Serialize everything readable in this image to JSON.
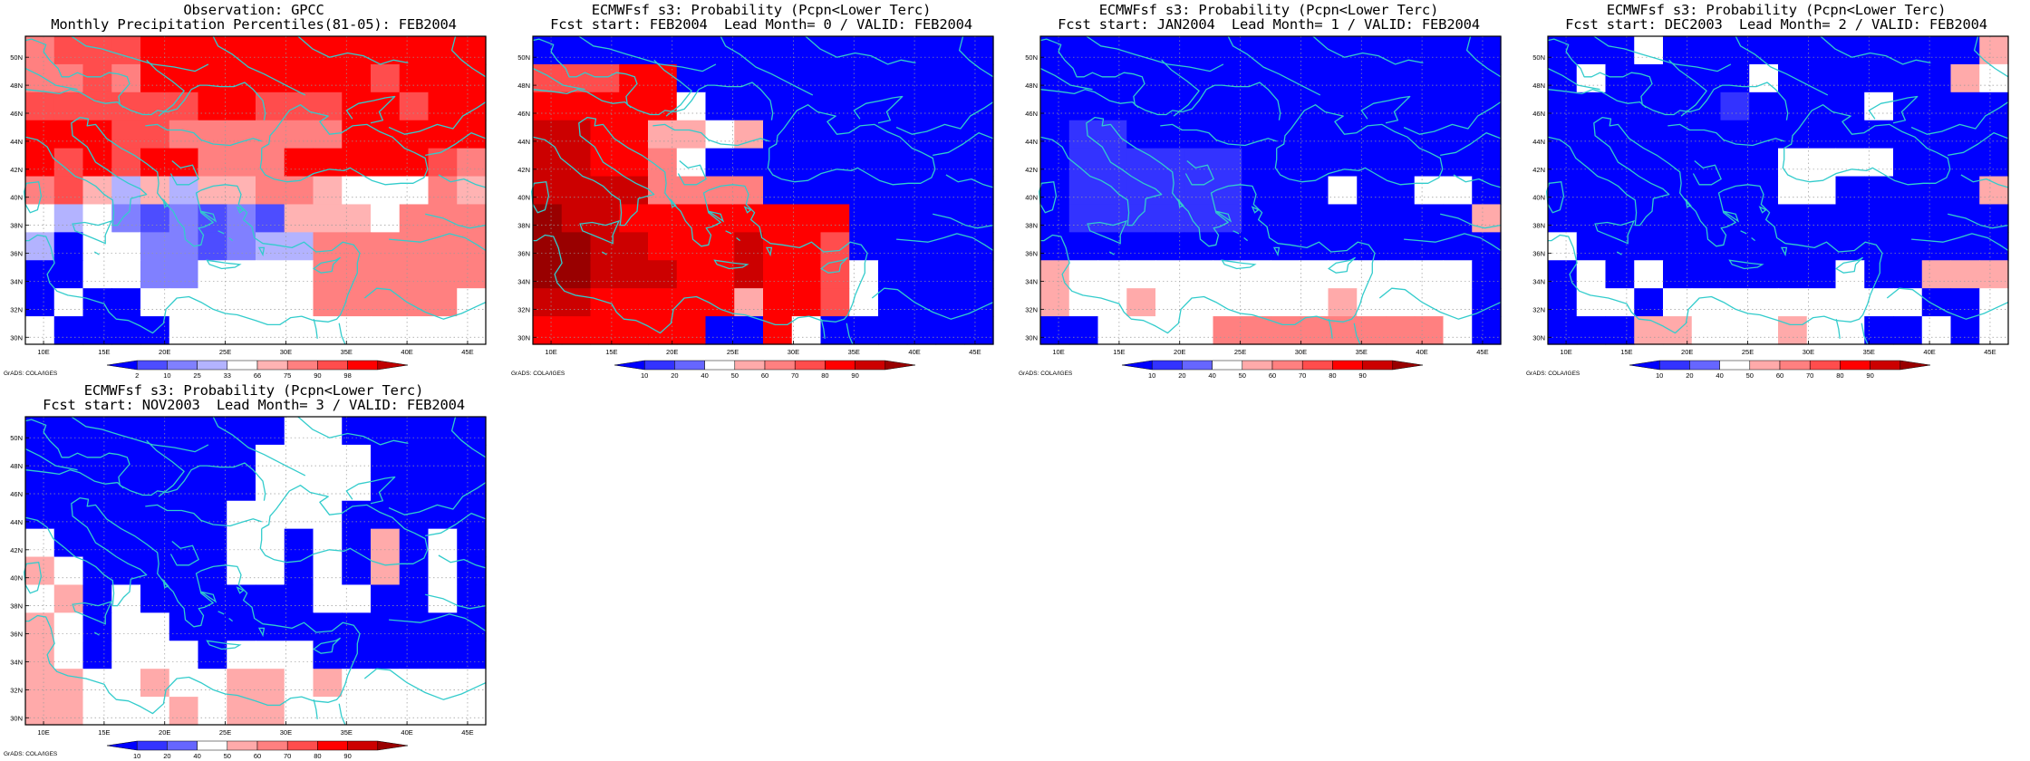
{
  "page": {
    "grads_label": "GrADS: COLA/IGES"
  },
  "axes": {
    "lat_labels": [
      "30N",
      "32N",
      "34N",
      "36N",
      "38N",
      "40N",
      "42N",
      "44N",
      "46N",
      "48N",
      "50N"
    ],
    "lon_labels": [
      "10E",
      "15E",
      "20E",
      "25E",
      "30E",
      "35E",
      "40E",
      "45E"
    ]
  },
  "colors": {
    "coast": "#33cccc",
    "obs_scale": [
      "#0000ff",
      "#4d4dff",
      "#8080ff",
      "#b3b3ff",
      "#ffffff",
      "#ffb3b3",
      "#ff8080",
      "#ff4d4d",
      "#ff0000",
      "#c00000"
    ],
    "prob_scale": [
      "#0000ff",
      "#3333ff",
      "#6666ff",
      "#ffffff",
      "#ffaaaa",
      "#ff8080",
      "#ff4d4d",
      "#ff0000",
      "#cc0000",
      "#990000"
    ]
  },
  "panels": [
    {
      "id": "obs",
      "title_line1": "Observation: GPCC",
      "title_line2": "Monthly Precipitation Percentiles(81-05): FEB2004",
      "colorbar_labels": [
        "2",
        "10",
        "25",
        "33",
        "66",
        "75",
        "90",
        "98"
      ],
      "grid": [
        "6777888888888888",
        "6676888888887888",
        "7777778877788788",
        "8887766666688888",
        "8787886668888876",
        "6753535566544465",
        "4342121215554666",
        "3044221233666666",
        "0044224444666666",
        "0400444444666664",
        "4000044444444444"
      ]
    },
    {
      "id": "fc0",
      "title_line1": "ECMWFsf s3: Probability (Pcpn<Lower Terc)",
      "title_line2": "Fcst start: FEB2004  Lead Month= 0 / VALID: FEB2004",
      "colorbar_labels": [
        "10",
        "20",
        "40",
        "50",
        "60",
        "70",
        "80",
        "90"
      ],
      "grid": [
        "0000000000000000",
        "6667700000000000",
        "7777730000000000",
        "8877443400000000",
        "8877530000000000",
        "8888555500000000",
        "9887777777700000",
        "9988777877600000",
        "9988877877630000",
        "8877777477630000",
        "7777770073000000"
      ]
    },
    {
      "id": "fc1",
      "title_line1": "ECMWFsf s3: Probability (Pcpn<Lower Terc)",
      "title_line2": "Fcst start: JAN2004  Lead Month= 1 / VALID: FEB2004",
      "colorbar_labels": [
        "10",
        "20",
        "40",
        "50",
        "60",
        "70",
        "80",
        "90"
      ],
      "grid": [
        "0000000000000000",
        "0000000000000000",
        "0000000000000000",
        "0110000000000000",
        "0111111000000000",
        "0111111000300330",
        "0111111000000004",
        "0000000000000000",
        "4333333333333330",
        "4334333333433330",
        "0033335555555530"
      ]
    },
    {
      "id": "fc2",
      "title_line1": "ECMWFsf s3: Probability (Pcpn<Lower Terc)",
      "title_line2": "Fcst start: DEC2003  Lead Month= 2 / VALID: FEB2004",
      "colorbar_labels": [
        "10",
        "20",
        "40",
        "50",
        "60",
        "70",
        "80",
        "90"
      ],
      "grid": [
        "0003000000000004",
        "0300000300000043",
        "0000001000030000",
        "0000000000000000",
        "0000000033330000",
        "0000000033000004",
        "0000000000000000",
        "3000000000000000",
        "0303000000300444",
        "0330333333333003",
        "0004433343300303"
      ]
    },
    {
      "id": "fc3",
      "title_line1": "ECMWFsf s3: Probability (Pcpn<Lower Terc)",
      "title_line2": "Fcst start: NOV2003  Lead Month= 3 / VALID: FEB2004",
      "colorbar_labels": [
        "10",
        "20",
        "40",
        "50",
        "60",
        "70",
        "80",
        "90"
      ],
      "grid": [
        "0000000003300000",
        "0000000033330000",
        "0000000033330000",
        "0000000333300000",
        "3000000330304030",
        "4300000330304030",
        "3403000000330030",
        "4303300000000000",
        "4303330333000000",
        "4433433443433333",
        "4433343443333333"
      ]
    }
  ]
}
